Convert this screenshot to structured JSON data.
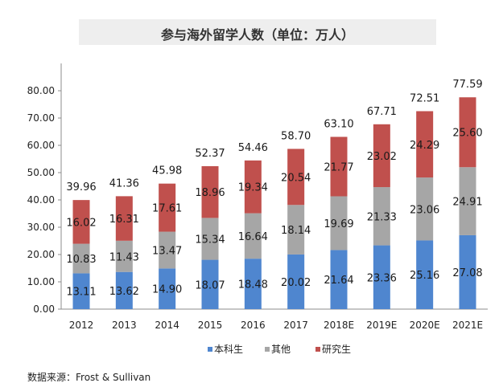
{
  "chart_data": {
    "type": "bar",
    "stacked": true,
    "title": "参与海外留学人数（单位：万人）",
    "categories": [
      "2012",
      "2013",
      "2014",
      "2015",
      "2016",
      "2017",
      "2018E",
      "2019E",
      "2020E",
      "2021E"
    ],
    "series": [
      {
        "name": "本科生",
        "color": "#4f86cf",
        "values": [
          13.11,
          13.62,
          14.9,
          18.07,
          18.48,
          20.02,
          21.64,
          23.36,
          25.16,
          27.08
        ]
      },
      {
        "name": "其他",
        "color": "#a6a6a6",
        "values": [
          10.83,
          11.43,
          13.47,
          15.34,
          16.64,
          18.14,
          19.69,
          21.33,
          23.06,
          24.91
        ]
      },
      {
        "name": "研究生",
        "color": "#c0504d",
        "values": [
          16.02,
          16.31,
          17.61,
          18.96,
          19.34,
          20.54,
          21.77,
          23.02,
          24.29,
          25.6
        ]
      }
    ],
    "value_labels": [
      [
        "13.11",
        "13.62",
        "14.90",
        "18.07",
        "18.48",
        "20.02",
        "21.64",
        "23.36",
        "25.16",
        "27.08"
      ],
      [
        "10.83",
        "11.43",
        "13.47",
        "15.34",
        "16.64",
        "18.14",
        "19.69",
        "21.33",
        "23.06",
        "24.91"
      ],
      [
        "16.02",
        "16.31",
        "17.61",
        "18.96",
        "19.34",
        "20.54",
        "21.77",
        "23.02",
        "24.29",
        "25.60"
      ]
    ],
    "totals": [
      "39.96",
      "41.36",
      "45.98",
      "52.37",
      "54.46",
      "58.70",
      "63.10",
      "67.71",
      "72.51",
      "77.59"
    ],
    "y_ticks": [
      "0.00",
      "10.00",
      "20.00",
      "30.00",
      "40.00",
      "50.00",
      "60.00",
      "70.00",
      "80.00"
    ],
    "ylim": [
      0,
      90
    ],
    "grid": false,
    "legend_position": "bottom"
  },
  "source_note": "数据来源：Frost  & Sullivan"
}
